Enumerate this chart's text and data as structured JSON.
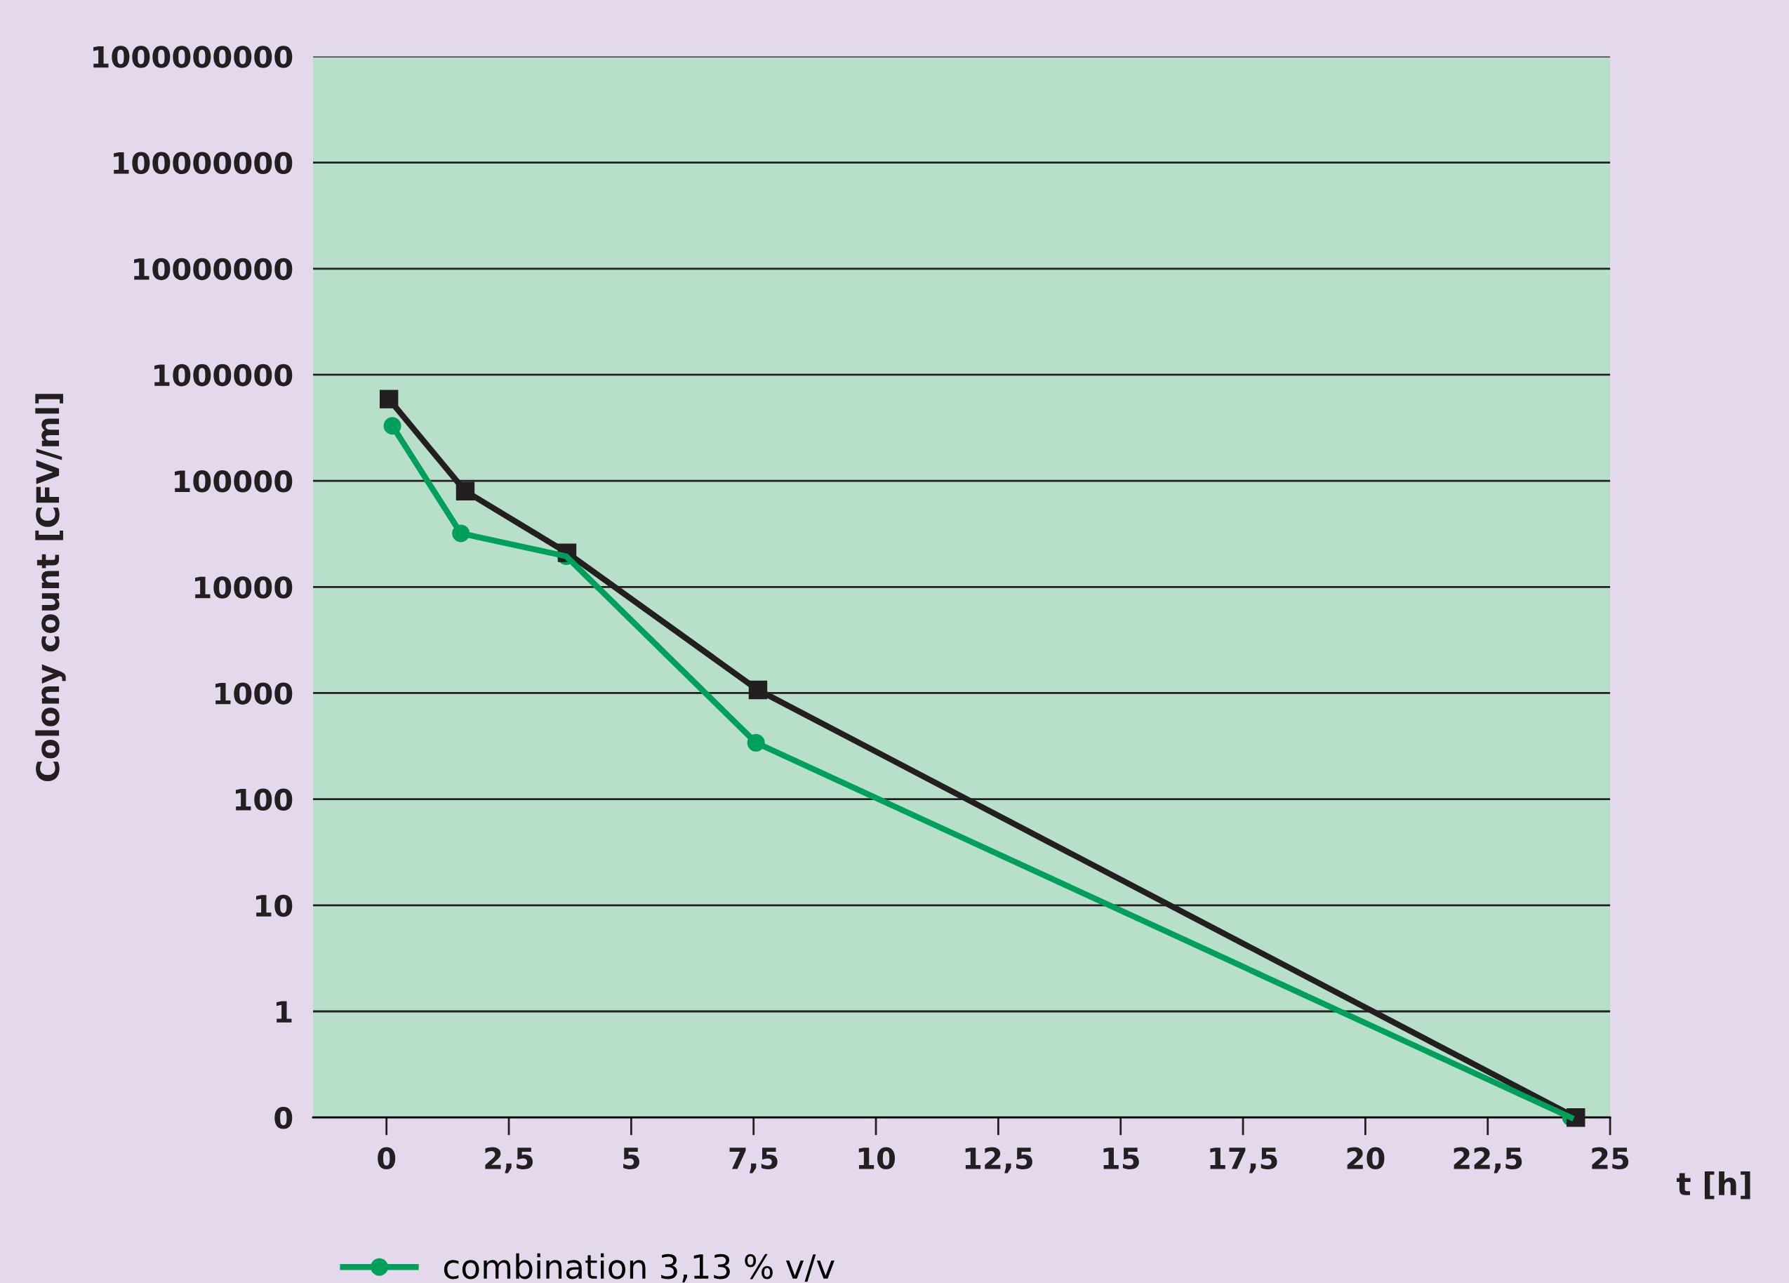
{
  "chart_data": {
    "type": "line",
    "ylabel": "Colony count [CFV/ml]",
    "xlabel": "t [h]",
    "log": "y",
    "grid": "y",
    "legend": "bottom",
    "xlim": [
      -1.5,
      25
    ],
    "xticks": [
      0,
      {
        "value": 2.5,
        "label": "2,5"
      },
      5,
      {
        "value": 7.5,
        "label": "7,5"
      },
      10,
      {
        "value": 12.5,
        "label": "12,5"
      },
      15,
      {
        "value": 17.5,
        "label": "17,5"
      },
      20,
      {
        "value": 22.5,
        "label": "22,5"
      },
      25
    ],
    "ylim": [
      0.1,
      1000000000
    ],
    "yticks": [
      {
        "value": 0.1,
        "label": "0"
      },
      1,
      10,
      100,
      1000,
      10000,
      100000,
      1000000,
      10000000,
      100000000,
      1000000000
    ],
    "series": [
      {
        "name": "combination 3,13 % v/v",
        "color": "#00a05a",
        "marker": "circle",
        "x": [
          0.12,
          1.52,
          3.67,
          7.55,
          24.2
        ],
        "values": [
          330000,
          32000,
          19500,
          340,
          0.1
        ]
      },
      {
        "color": "#231f20",
        "marker": "square",
        "x": [
          0.05,
          1.61,
          3.69,
          7.59,
          24.3
        ],
        "values": [
          590000,
          80000,
          21000,
          1070,
          0.1
        ]
      }
    ]
  }
}
